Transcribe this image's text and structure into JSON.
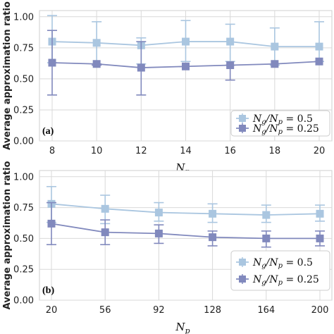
{
  "chart_data": [
    {
      "type": "line",
      "panel_label": "(a)",
      "x": [
        8,
        10,
        12,
        14,
        16,
        18,
        20
      ],
      "xticks": [
        "8",
        "10",
        "12",
        "14",
        "16",
        "18",
        "20"
      ],
      "xlabel": "N_p",
      "ylabel": "Average approximation ratio",
      "ylim": [
        0,
        1.05
      ],
      "yticks": [
        "0.00",
        "0.25",
        "0.50",
        "0.75",
        "1.00"
      ],
      "grid": true,
      "legend_position": "lower-right",
      "series": [
        {
          "name": "Ng/Np = 0.5",
          "legend_base": "N",
          "legend_sub1": "g",
          "legend_mid": "/N",
          "legend_sub2": "p",
          "legend_value": " = 0.5",
          "color": "#aac6e0",
          "values": [
            0.8,
            0.79,
            0.77,
            0.8,
            0.8,
            0.76,
            0.76
          ],
          "err_low": [
            0.17,
            0.17,
            0.15,
            0.16,
            0.16,
            0.15,
            0.12
          ],
          "err_high": [
            0.21,
            0.17,
            0.06,
            0.17,
            0.14,
            0.15,
            0.2
          ]
        },
        {
          "name": "Ng/Np = 0.25",
          "legend_base": "N",
          "legend_sub1": "g",
          "legend_mid": "/N",
          "legend_sub2": "p",
          "legend_value": " = 0.25",
          "color": "#8189bd",
          "values": [
            0.63,
            0.62,
            0.59,
            0.6,
            0.61,
            0.62,
            0.64
          ],
          "err_low": [
            0.26,
            0.01,
            0.22,
            0.0,
            0.12,
            0.0,
            0.0
          ],
          "err_high": [
            0.26,
            0.0,
            0.21,
            0.0,
            0.0,
            0.0,
            0.0
          ]
        }
      ]
    },
    {
      "type": "line",
      "panel_label": "(b)",
      "x": [
        20,
        56,
        92,
        128,
        164,
        200
      ],
      "xticks": [
        "20",
        "56",
        "92",
        "128",
        "164",
        "200"
      ],
      "xlabel": "N_p",
      "ylabel": "Average approximation ratio",
      "ylim": [
        0,
        1.05
      ],
      "yticks": [
        "0.00",
        "0.25",
        "0.50",
        "0.75",
        "1.00"
      ],
      "grid": true,
      "legend_position": "lower-right",
      "series": [
        {
          "name": "Ng/Np = 0.5",
          "legend_base": "N",
          "legend_sub1": "g",
          "legend_mid": "/N",
          "legend_sub2": "p",
          "legend_value": " = 0.5",
          "color": "#aac6e0",
          "values": [
            0.78,
            0.74,
            0.71,
            0.7,
            0.69,
            0.7
          ],
          "err_low": [
            0.15,
            0.12,
            0.07,
            0.07,
            0.06,
            0.06
          ],
          "err_high": [
            0.14,
            0.11,
            0.08,
            0.08,
            0.08,
            0.07
          ]
        },
        {
          "name": "Ng/Np = 0.25",
          "legend_base": "N",
          "legend_sub1": "g",
          "legend_mid": "/N",
          "legend_sub2": "p",
          "legend_value": " = 0.25",
          "color": "#8189bd",
          "values": [
            0.62,
            0.55,
            0.54,
            0.51,
            0.5,
            0.5
          ],
          "err_low": [
            0.17,
            0.1,
            0.08,
            0.07,
            0.07,
            0.06
          ],
          "err_high": [
            0.17,
            0.1,
            0.07,
            0.05,
            0.06,
            0.06
          ]
        }
      ]
    }
  ]
}
